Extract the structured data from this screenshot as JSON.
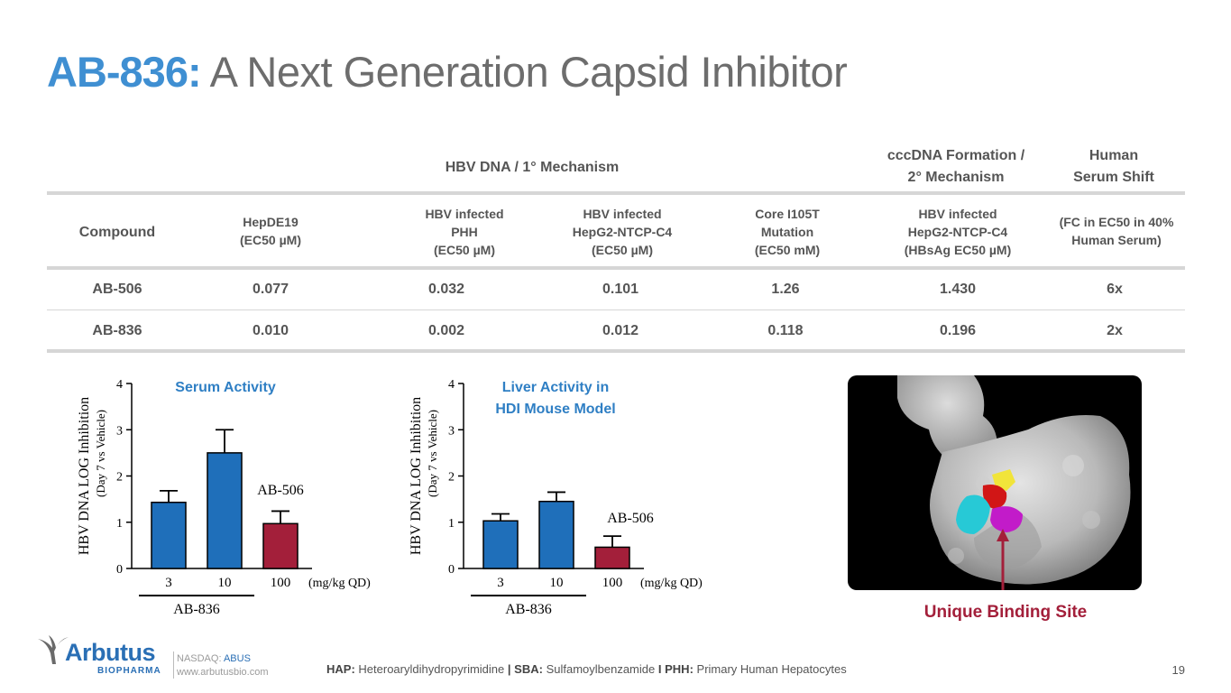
{
  "title": {
    "accent": "AB-836:",
    "rest": "A Next Generation Capsid Inhibitor"
  },
  "table": {
    "group_headers": {
      "hbv_dna": "HBV DNA / 1° Mechanism",
      "cccdna_line1": "cccDNA Formation /",
      "cccdna_line2": "2° Mechanism",
      "serum_line1": "Human",
      "serum_line2": "Serum Shift"
    },
    "compound_header": "Compound",
    "col_headers": [
      {
        "l1": "HepDE19",
        "l2": "(EC50 µM)",
        "l3": ""
      },
      {
        "l1": "HBV infected",
        "l2": "PHH",
        "l3": "(EC50 µM)"
      },
      {
        "l1": "HBV infected",
        "l2": "HepG2-NTCP-C4",
        "l3": "(EC50 µM)"
      },
      {
        "l1": "Core I105T",
        "l2": "Mutation",
        "l3": "(EC50 mM)"
      },
      {
        "l1": "HBV infected",
        "l2": "HepG2-NTCP-C4",
        "l3": "(HBsAg EC50 µM)"
      },
      {
        "l1": "(FC in EC50 in 40%",
        "l2": "Human Serum)",
        "l3": ""
      }
    ],
    "rows": [
      {
        "compound": "AB-506",
        "values": [
          "0.077",
          "0.032",
          "0.101",
          "1.26",
          "1.430",
          "6x"
        ]
      },
      {
        "compound": "AB-836",
        "values": [
          "0.010",
          "0.002",
          "0.012",
          "0.118",
          "0.196",
          "2x"
        ]
      }
    ]
  },
  "chart_data": [
    {
      "type": "bar",
      "title": "Serum Activity",
      "ylabel": "HBV DNA LOG Inhibition",
      "ylabel_sub": "(Day 7 vs Vehicle)",
      "yticks": [
        "0",
        "1",
        "2",
        "3",
        "4"
      ],
      "ylim": [
        0,
        4
      ],
      "categories": [
        "3",
        "10",
        "100"
      ],
      "units_label": "(mg/kg QD)",
      "values": [
        1.43,
        2.5,
        0.97
      ],
      "errors": [
        0.25,
        0.5,
        0.27
      ],
      "colors": [
        "#1f6fba",
        "#1f6fba",
        "#a31f3a"
      ],
      "group_label": "AB-836",
      "annotation": "AB-506"
    },
    {
      "type": "bar",
      "title": "Liver Activity in",
      "title_line2": "HDI Mouse Model",
      "ylabel": "HBV DNA LOG Inhibition",
      "ylabel_sub": "(Day 7 vs Vehicle)",
      "yticks": [
        "0",
        "1",
        "2",
        "3",
        "4"
      ],
      "ylim": [
        0,
        4
      ],
      "categories": [
        "3",
        "10",
        "100"
      ],
      "units_label": "(mg/kg QD)",
      "values": [
        1.03,
        1.45,
        0.46
      ],
      "errors": [
        0.15,
        0.2,
        0.24
      ],
      "colors": [
        "#1f6fba",
        "#1f6fba",
        "#a31f3a"
      ],
      "group_label": "AB-836",
      "annotation": "AB-506"
    }
  ],
  "binding_site_label": "Unique Binding Site",
  "footer": {
    "logo_name": "Arbutus",
    "logo_sub": "BIOPHARMA",
    "nasdaq_prefix": "NASDAQ:",
    "nasdaq_ticker": "ABUS",
    "website": "www.arbutusbio.com",
    "legend": [
      {
        "term": "HAP:",
        "def": "Heteroaryldihydropyrimidine"
      },
      {
        "term": "SBA:",
        "def": "Sulfamoylbenzamide"
      },
      {
        "term": "PHH:",
        "def": "Primary Human Hepatocytes"
      }
    ],
    "legend_sep1": "|",
    "legend_sep2": "I",
    "page_number": "19"
  }
}
